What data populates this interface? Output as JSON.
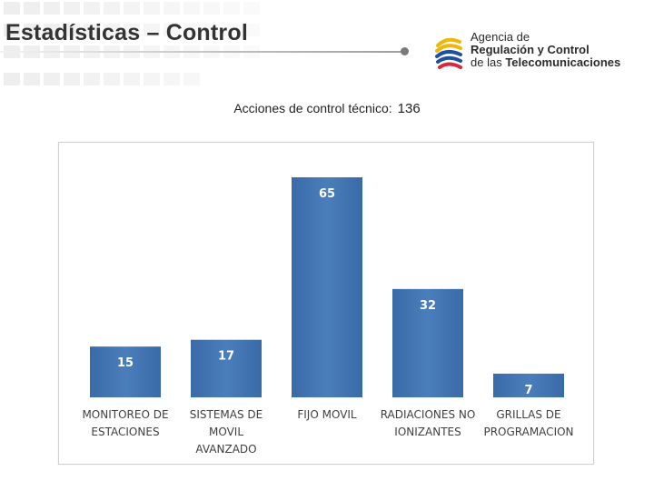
{
  "header": {
    "title": "Estadísticas – Control"
  },
  "logo": {
    "line1": "Agencia de",
    "line2": "Regulación y Control",
    "line3_prefix": "de las ",
    "line3_bold": "Telecomunicaciones"
  },
  "summary": {
    "label": "Acciones de control técnico:",
    "total": "136"
  },
  "colors": {
    "bar": "#4a7ebb",
    "bar_dark": "#3a6aa8",
    "label_text": "#ffffff",
    "category_text": "#404040"
  },
  "chart_data": {
    "type": "bar",
    "title": "",
    "xlabel": "",
    "ylabel": "",
    "categories": [
      [
        "MONITOREO DE",
        "ESTACIONES"
      ],
      [
        "SISTEMAS DE",
        "MOVIL",
        "AVANZADO"
      ],
      [
        "FIJO MOVIL"
      ],
      [
        "RADIACIONES NO",
        "IONIZANTES"
      ],
      [
        "GRILLAS DE",
        "PROGRAMACION"
      ]
    ],
    "values": [
      15,
      17,
      65,
      32,
      7
    ],
    "data_labels": [
      "15",
      "17",
      "65",
      "32",
      "7"
    ],
    "ylim": [
      0,
      65
    ],
    "grid": false,
    "legend": "none"
  }
}
